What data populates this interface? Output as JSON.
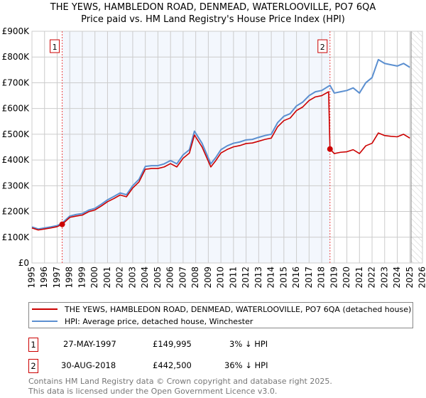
{
  "chart_data": {
    "type": "line",
    "title": "THE YEWS, HAMBLEDON ROAD, DENMEAD, WATERLOOVILLE, PO7 6QA",
    "subtitle": "Price paid vs. HM Land Registry's House Price Index (HPI)",
    "xlim": [
      1995,
      2026
    ],
    "ylim": [
      0,
      900000
    ],
    "x_ticks": [
      "1995",
      "1996",
      "1997",
      "1998",
      "1999",
      "2000",
      "2001",
      "2002",
      "2003",
      "2004",
      "2005",
      "2006",
      "2007",
      "2008",
      "2009",
      "2010",
      "2011",
      "2012",
      "2013",
      "2014",
      "2015",
      "2016",
      "2017",
      "2018",
      "2019",
      "2020",
      "2021",
      "2022",
      "2023",
      "2024",
      "2025",
      "2026"
    ],
    "y_ticks": [
      {
        "v": 0,
        "label": "£0"
      },
      {
        "v": 100000,
        "label": "£100K"
      },
      {
        "v": 200000,
        "label": "£200K"
      },
      {
        "v": 300000,
        "label": "£300K"
      },
      {
        "v": 400000,
        "label": "£400K"
      },
      {
        "v": 500000,
        "label": "£500K"
      },
      {
        "v": 600000,
        "label": "£600K"
      },
      {
        "v": 700000,
        "label": "£700K"
      },
      {
        "v": 800000,
        "label": "£800K"
      },
      {
        "v": 900000,
        "label": "£900K"
      }
    ],
    "grid": true,
    "shaded_range": [
      1997.4,
      2018.66
    ],
    "hatched_from": 2025.1,
    "series": [
      {
        "name": "THE YEWS, HAMBLEDON ROAD, DENMEAD, WATERLOOVILLE, PO7 6QA (detached house)",
        "color": "#cc0000",
        "points": [
          [
            1995.0,
            136
          ],
          [
            1995.5,
            128
          ],
          [
            1996.0,
            132
          ],
          [
            1996.5,
            136
          ],
          [
            1997.0,
            141
          ],
          [
            1997.4,
            150
          ],
          [
            1998.0,
            177
          ],
          [
            1998.5,
            182
          ],
          [
            1999.0,
            186
          ],
          [
            1999.5,
            199
          ],
          [
            2000.0,
            206
          ],
          [
            2000.5,
            221
          ],
          [
            2001.0,
            238
          ],
          [
            2001.5,
            250
          ],
          [
            2002.0,
            264
          ],
          [
            2002.5,
            257
          ],
          [
            2003.0,
            291
          ],
          [
            2003.5,
            315
          ],
          [
            2004.0,
            364
          ],
          [
            2004.5,
            367
          ],
          [
            2005.0,
            367
          ],
          [
            2005.5,
            373
          ],
          [
            2006.0,
            386
          ],
          [
            2006.5,
            373
          ],
          [
            2007.0,
            407
          ],
          [
            2007.5,
            427
          ],
          [
            2007.9,
            497
          ],
          [
            2008.5,
            451
          ],
          [
            2009.2,
            373
          ],
          [
            2009.6,
            398
          ],
          [
            2010.0,
            427
          ],
          [
            2010.5,
            441
          ],
          [
            2011.0,
            451
          ],
          [
            2011.5,
            456
          ],
          [
            2012.0,
            464
          ],
          [
            2012.5,
            466
          ],
          [
            2013.0,
            473
          ],
          [
            2013.5,
            480
          ],
          [
            2014.0,
            485
          ],
          [
            2014.5,
            529
          ],
          [
            2015.0,
            553
          ],
          [
            2015.5,
            563
          ],
          [
            2016.0,
            592
          ],
          [
            2016.5,
            606
          ],
          [
            2017.0,
            631
          ],
          [
            2017.5,
            645
          ],
          [
            2018.0,
            650
          ],
          [
            2018.55,
            665
          ],
          [
            2018.66,
            442.5
          ],
          [
            2019.0,
            425
          ],
          [
            2019.5,
            430
          ],
          [
            2020.0,
            432
          ],
          [
            2020.5,
            440
          ],
          [
            2021.0,
            425
          ],
          [
            2021.5,
            455
          ],
          [
            2022.0,
            465
          ],
          [
            2022.5,
            505
          ],
          [
            2023.0,
            495
          ],
          [
            2023.5,
            492
          ],
          [
            2024.0,
            490
          ],
          [
            2024.5,
            500
          ],
          [
            2025.0,
            485
          ]
        ]
      },
      {
        "name": "HPI: Average price, detached house, Winchester",
        "color": "#5b8fd0",
        "points": [
          [
            1995.0,
            140
          ],
          [
            1995.5,
            132
          ],
          [
            1996.0,
            136
          ],
          [
            1996.5,
            140
          ],
          [
            1997.0,
            145
          ],
          [
            1997.4,
            155
          ],
          [
            1998.0,
            182
          ],
          [
            1998.5,
            188
          ],
          [
            1999.0,
            192
          ],
          [
            1999.5,
            205
          ],
          [
            2000.0,
            212
          ],
          [
            2000.5,
            228
          ],
          [
            2001.0,
            245
          ],
          [
            2001.5,
            258
          ],
          [
            2002.0,
            272
          ],
          [
            2002.5,
            265
          ],
          [
            2003.0,
            300
          ],
          [
            2003.5,
            325
          ],
          [
            2004.0,
            375
          ],
          [
            2004.5,
            378
          ],
          [
            2005.0,
            378
          ],
          [
            2005.5,
            385
          ],
          [
            2006.0,
            398
          ],
          [
            2006.5,
            385
          ],
          [
            2007.0,
            420
          ],
          [
            2007.5,
            440
          ],
          [
            2007.9,
            512
          ],
          [
            2008.5,
            465
          ],
          [
            2009.2,
            385
          ],
          [
            2009.6,
            410
          ],
          [
            2010.0,
            440
          ],
          [
            2010.5,
            455
          ],
          [
            2011.0,
            465
          ],
          [
            2011.5,
            470
          ],
          [
            2012.0,
            478
          ],
          [
            2012.5,
            480
          ],
          [
            2013.0,
            488
          ],
          [
            2013.5,
            495
          ],
          [
            2014.0,
            500
          ],
          [
            2014.5,
            545
          ],
          [
            2015.0,
            570
          ],
          [
            2015.5,
            580
          ],
          [
            2016.0,
            610
          ],
          [
            2016.5,
            625
          ],
          [
            2017.0,
            650
          ],
          [
            2017.5,
            665
          ],
          [
            2018.0,
            670
          ],
          [
            2018.66,
            690
          ],
          [
            2019.0,
            660
          ],
          [
            2019.5,
            665
          ],
          [
            2020.0,
            670
          ],
          [
            2020.5,
            680
          ],
          [
            2021.0,
            660
          ],
          [
            2021.5,
            700
          ],
          [
            2022.0,
            720
          ],
          [
            2022.5,
            790
          ],
          [
            2023.0,
            775
          ],
          [
            2023.5,
            770
          ],
          [
            2024.0,
            765
          ],
          [
            2024.5,
            775
          ],
          [
            2025.0,
            760
          ]
        ]
      }
    ],
    "annotations": [
      {
        "label": "1",
        "x": 1997.4,
        "y": 149995
      },
      {
        "label": "2",
        "x": 2018.66,
        "y": 442500
      }
    ]
  },
  "sales": [
    {
      "num": "1",
      "date": "27-MAY-1997",
      "price": "£149,995",
      "delta": "3% ↓ HPI"
    },
    {
      "num": "2",
      "date": "30-AUG-2018",
      "price": "£442,500",
      "delta": "36% ↓ HPI"
    }
  ],
  "footer": [
    "Contains HM Land Registry data © Crown copyright and database right 2025.",
    "This data is licensed under the Open Government Licence v3.0."
  ]
}
